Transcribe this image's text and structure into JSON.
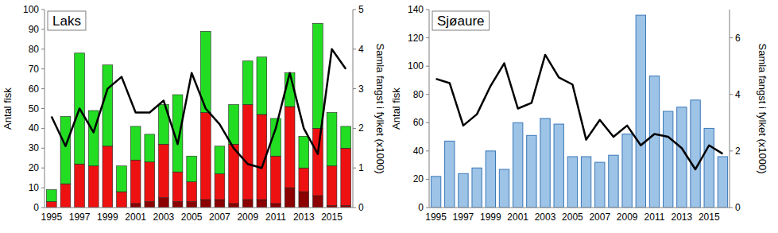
{
  "chart_data": [
    {
      "type": "bar",
      "title": "Laks",
      "stacked": true,
      "categories": [
        "1995",
        null,
        "1997",
        null,
        "1999",
        null,
        "2001",
        null,
        "2003",
        null,
        "2005",
        null,
        "2007",
        null,
        "2009",
        null,
        "2011",
        null,
        "2013",
        null,
        "2015",
        null
      ],
      "series": [
        {
          "type": "bar",
          "color": "#8b0000",
          "values": [
            0,
            0,
            0,
            0,
            0,
            0,
            2,
            3,
            5,
            3,
            3,
            4,
            4,
            2,
            4,
            4,
            2,
            10,
            8,
            6,
            1,
            1
          ]
        },
        {
          "type": "bar",
          "color": "#ee1111",
          "values": [
            3,
            12,
            22,
            21,
            31,
            8,
            22,
            20,
            27,
            15,
            10,
            44,
            13,
            30,
            48,
            43,
            24,
            41,
            12,
            34,
            20,
            29
          ]
        },
        {
          "type": "bar",
          "color": "#22dd22",
          "values": [
            6,
            34,
            56,
            28,
            41,
            13,
            17,
            14,
            20,
            39,
            13,
            41,
            14,
            20,
            22,
            29,
            19,
            17,
            16,
            53,
            27,
            11
          ]
        },
        {
          "type": "line",
          "axis": "y2",
          "color": "#000000",
          "values": [
            2.3,
            1.55,
            2.5,
            1.9,
            3.0,
            3.3,
            2.4,
            2.4,
            2.7,
            1.6,
            3.4,
            2.5,
            2.1,
            1.5,
            1.1,
            1.0,
            2.0,
            3.4,
            2.0,
            1.35,
            4.0,
            3.5
          ]
        }
      ],
      "y_label": "Antal fisk",
      "ylim": [
        0,
        100
      ],
      "yticks": [
        0,
        10,
        20,
        30,
        40,
        50,
        60,
        70,
        80,
        90,
        100
      ],
      "y2_label": "Samla fangst i fylket (x1000)",
      "y2lim": [
        0,
        5
      ],
      "y2ticks": [
        0,
        1,
        2,
        3,
        4,
        5
      ]
    },
    {
      "type": "bar",
      "title": "Sjøaure",
      "stacked": false,
      "categories": [
        "1995",
        null,
        "1997",
        null,
        "1999",
        null,
        "2001",
        null,
        "2003",
        null,
        "2005",
        null,
        "2007",
        null,
        "2009",
        null,
        "2011",
        null,
        "2013",
        null,
        "2015",
        null
      ],
      "series": [
        {
          "type": "bar",
          "color": "#9dc3e6",
          "values": [
            22,
            47,
            24,
            28,
            40,
            27,
            60,
            51,
            63,
            59,
            36,
            36,
            32,
            37,
            52,
            136,
            93,
            68,
            71,
            76,
            56,
            36
          ]
        },
        {
          "type": "line",
          "axis": "y2",
          "color": "#000000",
          "values": [
            4.55,
            4.4,
            2.9,
            3.3,
            4.3,
            5.1,
            3.5,
            3.7,
            5.4,
            4.6,
            4.35,
            2.4,
            3.1,
            2.5,
            2.9,
            2.2,
            2.6,
            2.5,
            2.1,
            1.35,
            2.2,
            1.9
          ]
        }
      ],
      "y_label": "Antal fisk",
      "ylim": [
        0,
        140
      ],
      "yticks": [
        0,
        20,
        40,
        60,
        80,
        100,
        120,
        140
      ],
      "y2_label": "Samla fangst i fylket (x1000)",
      "y2lim": [
        0,
        7
      ],
      "y2ticks": [
        0,
        2,
        4,
        6
      ]
    }
  ]
}
